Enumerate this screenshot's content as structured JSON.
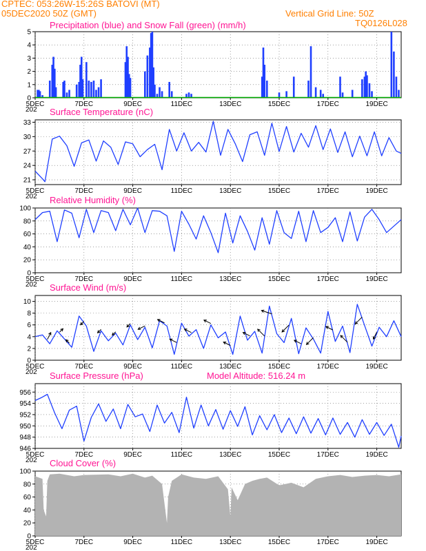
{
  "header": {
    "line1_left": "CPTEC:   053:26W-15:26S   BATOVI (MT)",
    "line2_left": "05DEC2020 50Z (GMT)",
    "line2_right": "Vertical Grid Line: 50Z",
    "line3_right": "TQ0126L028"
  },
  "colors": {
    "header": "#ff7f00",
    "title": "#ff1493",
    "line": "#1f3fff",
    "precip": "#1f3fff",
    "snow": "#00b000",
    "cloud": "#b3b3b3"
  },
  "x_axis": {
    "tick_labels": [
      "5DEC",
      "7DEC",
      "9DEC",
      "11DEC",
      "13DEC",
      "15DEC",
      "17DEC",
      "19DEC"
    ],
    "tick_days": [
      0,
      2,
      4,
      6,
      8,
      10,
      12,
      14
    ],
    "range_days": [
      0,
      15
    ],
    "first_label_prefix": "202"
  },
  "chart_data": [
    {
      "type": "bar",
      "title": "Precipitation (blue) and Snow Fall (green) (mm/h)",
      "ylim": [
        0,
        5
      ],
      "yticks": [
        "0",
        "1",
        "2",
        "3",
        "4",
        "5"
      ],
      "series": [
        {
          "name": "Precipitation",
          "x": [
            0.1,
            0.15,
            0.2,
            0.3,
            0.6,
            0.7,
            0.75,
            0.8,
            0.85,
            1.15,
            1.2,
            1.3,
            1.4,
            1.7,
            1.8,
            1.85,
            1.9,
            1.95,
            2.1,
            2.2,
            2.3,
            2.4,
            2.5,
            2.6,
            2.7,
            3.7,
            3.75,
            3.8,
            3.85,
            3.9,
            4.5,
            4.6,
            4.7,
            4.75,
            4.8,
            4.85,
            4.9,
            5.0,
            5.1,
            5.2,
            5.5,
            5.6,
            6.2,
            6.3,
            6.4,
            9.3,
            9.35,
            9.4,
            9.5,
            10.0,
            10.3,
            10.6,
            11.2,
            11.3,
            11.5,
            11.7,
            11.8,
            12.5,
            12.6,
            13.0,
            13.4,
            13.5,
            13.55,
            13.6,
            13.7,
            13.8,
            14.6,
            14.7,
            14.8,
            14.9
          ],
          "values": [
            0.6,
            0.6,
            0.5,
            0.2,
            1.3,
            2.5,
            3.1,
            2.2,
            0.8,
            1.2,
            1.3,
            0.4,
            0.6,
            1.0,
            1.2,
            2.5,
            3.1,
            1.4,
            2.7,
            1.3,
            1.2,
            1.3,
            0.6,
            0.8,
            1.4,
            2.7,
            3.9,
            3.1,
            1.8,
            1.5,
            2.0,
            3.2,
            3.8,
            4.9,
            5.0,
            2.3,
            1.0,
            0.3,
            0.8,
            0.5,
            1.2,
            0.5,
            0.3,
            0.4,
            0.3,
            1.6,
            3.8,
            2.5,
            1.3,
            0.4,
            0.5,
            1.6,
            1.3,
            3.9,
            0.8,
            0.6,
            0.3,
            1.6,
            0.4,
            0.6,
            1.4,
            1.6,
            2.0,
            1.7,
            1.1,
            0.5,
            5.0,
            3.5,
            1.6,
            0.6
          ]
        },
        {
          "name": "Snow Fall",
          "x": [
            0,
            15
          ],
          "values": [
            0,
            0
          ]
        }
      ]
    },
    {
      "type": "line",
      "title": "Surface Temperature (nC)",
      "ylim": [
        20,
        33.5
      ],
      "yticks": [
        "21",
        "24",
        "27",
        "30",
        "33"
      ],
      "x": [
        0,
        0.3,
        0.4,
        0.7,
        1.0,
        1.3,
        1.6,
        1.9,
        2.2,
        2.5,
        2.8,
        3.1,
        3.4,
        3.7,
        4.0,
        4.3,
        4.6,
        4.9,
        5.2,
        5.5,
        5.8,
        6.1,
        6.4,
        6.7,
        7.0,
        7.3,
        7.6,
        7.9,
        8.2,
        8.5,
        8.8,
        9.1,
        9.4,
        9.7,
        10.0,
        10.3,
        10.6,
        10.9,
        11.2,
        11.5,
        11.8,
        12.1,
        12.4,
        12.7,
        13.0,
        13.3,
        13.6,
        13.9,
        14.2,
        14.5,
        14.8,
        15.0
      ],
      "values": [
        22.8,
        21.2,
        20.6,
        29.5,
        30.1,
        28.1,
        23.8,
        28.7,
        29.3,
        24.9,
        29.1,
        27.8,
        24.2,
        28.9,
        28.5,
        25.8,
        27.3,
        28.4,
        23.1,
        31.5,
        27.0,
        30.8,
        27.0,
        28.8,
        26.8,
        33.2,
        26.1,
        31.5,
        28.5,
        24.8,
        30.4,
        31.0,
        26.1,
        32.8,
        26.9,
        32.1,
        26.8,
        30.7,
        27.8,
        32.3,
        27.3,
        31.6,
        26.7,
        31.0,
        25.8,
        30.1,
        26.0,
        31.0,
        26.0,
        29.8,
        27.0,
        26.5
      ]
    },
    {
      "type": "line",
      "title": "Relative Humidity (%)",
      "ylim": [
        0,
        100
      ],
      "yticks": [
        "0",
        "20",
        "40",
        "60",
        "80",
        "100"
      ],
      "x": [
        0,
        0.3,
        0.6,
        0.9,
        1.2,
        1.5,
        1.8,
        2.1,
        2.4,
        2.7,
        3.0,
        3.3,
        3.6,
        3.9,
        4.2,
        4.5,
        4.8,
        5.1,
        5.4,
        5.7,
        6.0,
        6.3,
        6.6,
        6.9,
        7.2,
        7.5,
        7.8,
        8.1,
        8.4,
        8.7,
        9.0,
        9.3,
        9.6,
        9.9,
        10.2,
        10.5,
        10.8,
        11.1,
        11.4,
        11.7,
        12.0,
        12.3,
        12.6,
        12.9,
        13.2,
        13.5,
        13.8,
        14.1,
        14.4,
        14.7,
        15.0
      ],
      "values": [
        82,
        93,
        95,
        48,
        97,
        92,
        54,
        98,
        62,
        96,
        93,
        65,
        98,
        74,
        100,
        62,
        96,
        95,
        88,
        33,
        95,
        75,
        52,
        88,
        62,
        31,
        92,
        46,
        88,
        64,
        35,
        85,
        44,
        96,
        62,
        53,
        95,
        48,
        96,
        62,
        70,
        85,
        48,
        94,
        49,
        86,
        98,
        82,
        62,
        72,
        82
      ]
    },
    {
      "type": "line",
      "title": "Surface Wind (m/s)",
      "ylim": [
        0,
        11
      ],
      "yticks": [
        "0",
        "2",
        "4",
        "6",
        "8",
        "10"
      ],
      "x": [
        0,
        0.3,
        0.6,
        0.9,
        1.2,
        1.5,
        1.8,
        2.1,
        2.4,
        2.7,
        3.0,
        3.3,
        3.6,
        3.9,
        4.2,
        4.5,
        4.8,
        5.1,
        5.4,
        5.7,
        6.0,
        6.3,
        6.6,
        6.9,
        7.2,
        7.5,
        7.8,
        8.1,
        8.4,
        8.7,
        9.0,
        9.3,
        9.6,
        9.9,
        10.2,
        10.5,
        10.8,
        11.1,
        11.4,
        11.7,
        12.0,
        12.3,
        12.6,
        12.9,
        13.2,
        13.5,
        13.8,
        14.1,
        14.4,
        14.7,
        15.0
      ],
      "values": [
        4.0,
        4.3,
        2.8,
        5.0,
        3.6,
        2.2,
        7.5,
        5.8,
        1.5,
        5.0,
        3.3,
        4.6,
        2.6,
        6.0,
        3.5,
        5.6,
        2.1,
        6.7,
        5.8,
        1.0,
        6.3,
        4.1,
        5.2,
        2.0,
        6.0,
        3.8,
        4.8,
        1.0,
        7.5,
        3.4,
        4.9,
        1.2,
        9.2,
        4.5,
        3.0,
        7.1,
        1.1,
        5.5,
        3.6,
        1.2,
        8.3,
        3.2,
        5.8,
        1.3,
        9.5,
        5.9,
        2.4,
        5.6,
        4.0,
        6.7,
        4.0
      ],
      "arrows": {
        "x": [
          0.5,
          1.0,
          1.4,
          2.0,
          2.7,
          3.3,
          3.9,
          4.5,
          5.3,
          5.8,
          6.4,
          7.2,
          8.0,
          8.8,
          9.4,
          9.7,
          10.4,
          10.9,
          11.4,
          12.2,
          12.8,
          13.4,
          14.0
        ],
        "u": [
          1,
          1,
          -1,
          -1,
          -1,
          -1,
          -1,
          -2,
          -2,
          -2,
          -2,
          -2,
          -2,
          -2,
          -2,
          -3,
          -2,
          -2,
          -2,
          -2,
          -2,
          -2,
          -1
        ],
        "v": [
          2,
          1,
          1,
          -1,
          -1,
          -1,
          -1,
          -1,
          1,
          1,
          1,
          1,
          1,
          1,
          2,
          1,
          -2,
          1,
          -2,
          1,
          2,
          -2,
          -2
        ]
      }
    },
    {
      "type": "line",
      "title": "Surface Pressure (hPa)",
      "annotation": "Model Altitude: 516.24 m",
      "ylim": [
        946,
        957.5
      ],
      "yticks": [
        "946",
        "948",
        "950",
        "952",
        "954",
        "956"
      ],
      "x": [
        0,
        0.25,
        0.5,
        0.8,
        1.1,
        1.4,
        1.7,
        2.0,
        2.3,
        2.6,
        2.9,
        3.2,
        3.5,
        3.8,
        4.1,
        4.4,
        4.7,
        5.0,
        5.3,
        5.6,
        5.9,
        6.2,
        6.5,
        6.8,
        7.1,
        7.4,
        7.7,
        8.0,
        8.3,
        8.6,
        8.9,
        9.2,
        9.5,
        9.8,
        10.1,
        10.4,
        10.7,
        11.0,
        11.3,
        11.6,
        11.9,
        12.2,
        12.5,
        12.8,
        13.1,
        13.4,
        13.7,
        14.0,
        14.3,
        14.6,
        14.9,
        15.0
      ],
      "values": [
        954.5,
        955.0,
        955.6,
        952.3,
        949.5,
        952.8,
        953.5,
        947.3,
        951.5,
        953.9,
        950.8,
        953.0,
        949.5,
        953.8,
        951.6,
        952.1,
        949.0,
        953.7,
        950.5,
        952.4,
        948.8,
        955.1,
        949.6,
        953.7,
        950.0,
        952.9,
        949.4,
        952.7,
        949.9,
        953.4,
        948.4,
        951.8,
        949.3,
        952.0,
        948.8,
        951.4,
        948.6,
        951.6,
        948.7,
        951.3,
        948.4,
        951.4,
        948.5,
        950.6,
        948.0,
        951.1,
        948.5,
        950.6,
        948.3,
        950.3,
        946.2,
        948.2
      ]
    },
    {
      "type": "area",
      "title": "Cloud Cover (%)",
      "ylim": [
        0,
        100
      ],
      "yticks": [
        "0",
        "20",
        "40",
        "60",
        "80",
        "100"
      ],
      "x": [
        0,
        0.3,
        0.35,
        0.45,
        0.5,
        0.6,
        1.0,
        1.6,
        2.0,
        3.0,
        3.5,
        4.0,
        4.5,
        4.8,
        5.2,
        5.4,
        5.45,
        5.6,
        6.0,
        6.5,
        7.0,
        7.5,
        7.9,
        8.0,
        8.05,
        8.3,
        8.6,
        8.9,
        9.2,
        9.5,
        10.0,
        10.5,
        11.0,
        11.5,
        12.0,
        12.5,
        13.0,
        13.5,
        14.0,
        14.5,
        15.0
      ],
      "values": [
        92,
        88,
        40,
        30,
        85,
        95,
        96,
        92,
        94,
        95,
        92,
        96,
        90,
        93,
        80,
        20,
        60,
        85,
        95,
        90,
        88,
        92,
        72,
        30,
        75,
        55,
        80,
        85,
        88,
        90,
        78,
        82,
        75,
        88,
        92,
        94,
        91,
        93,
        94,
        92,
        95
      ]
    }
  ]
}
